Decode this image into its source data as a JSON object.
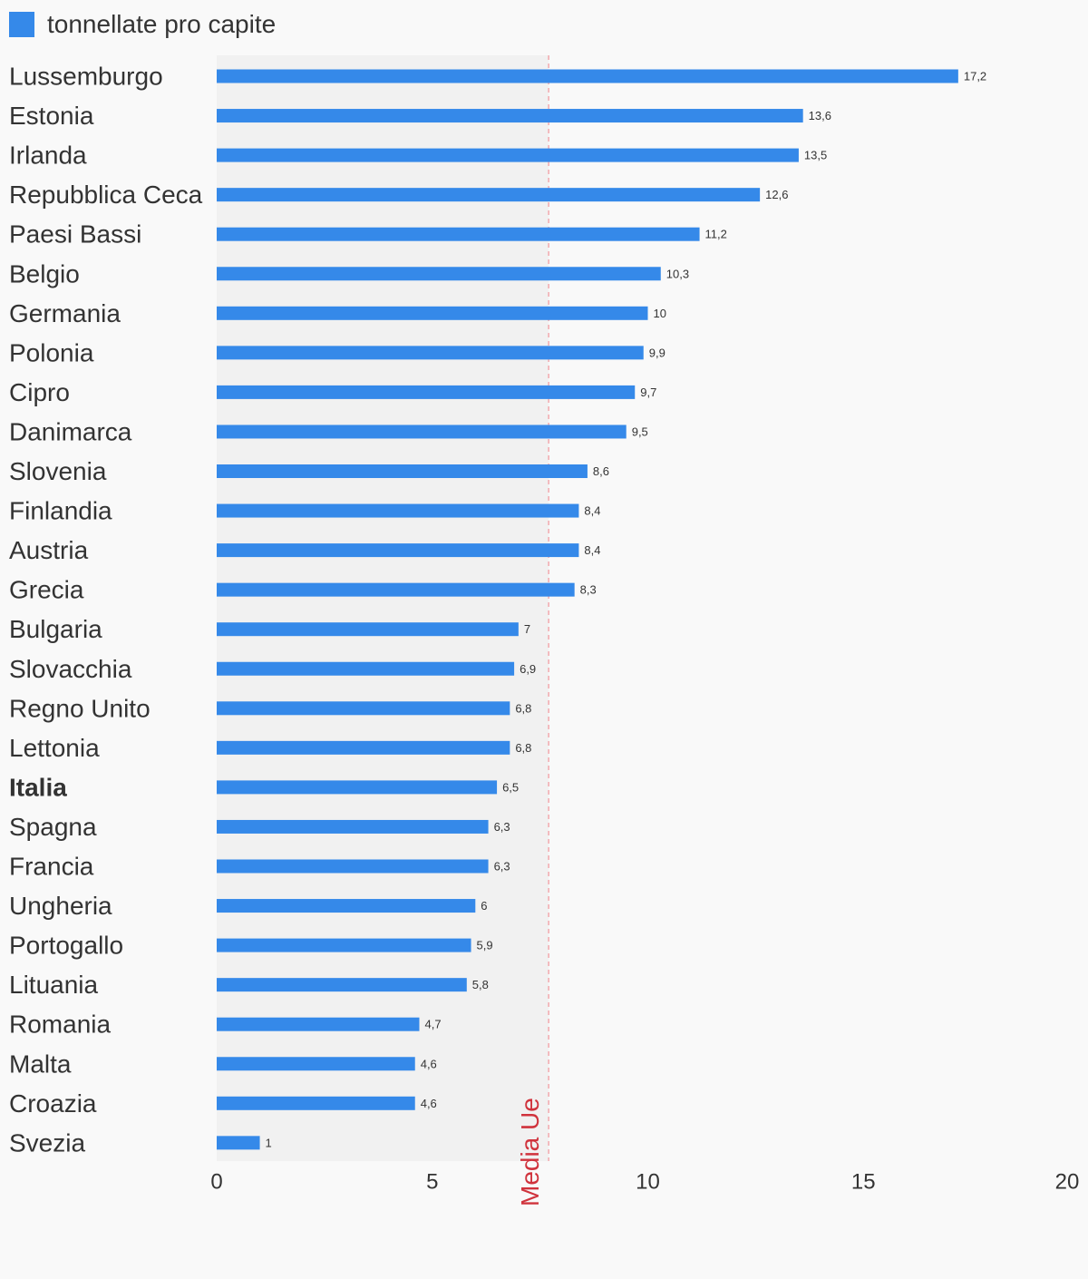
{
  "chart_data": {
    "type": "bar",
    "orientation": "horizontal",
    "legend": {
      "label": "tonnellate pro capite",
      "color": "#3589e9",
      "placement": "top-left"
    },
    "categories": [
      "Lussemburgo",
      "Estonia",
      "Irlanda",
      "Repubblica Ceca",
      "Paesi Bassi",
      "Belgio",
      "Germania",
      "Polonia",
      "Cipro",
      "Danimarca",
      "Slovenia",
      "Finlandia",
      "Austria",
      "Grecia",
      "Bulgaria",
      "Slovacchia",
      "Regno Unito",
      "Lettonia",
      "Italia",
      "Spagna",
      "Francia",
      "Ungheria",
      "Portogallo",
      "Lituania",
      "Romania",
      "Malta",
      "Croazia",
      "Svezia"
    ],
    "highlight_category": "Italia",
    "series": [
      {
        "name": "tonnellate pro capite",
        "values": [
          17.2,
          13.6,
          13.5,
          12.6,
          11.2,
          10.3,
          10,
          9.9,
          9.7,
          9.5,
          8.6,
          8.4,
          8.4,
          8.3,
          7,
          6.9,
          6.8,
          6.8,
          6.5,
          6.3,
          6.3,
          6,
          5.9,
          5.8,
          4.7,
          4.6,
          4.6,
          1
        ],
        "labels": [
          "17,2",
          "13,6",
          "13,5",
          "12,6",
          "11,2",
          "10,3",
          "10",
          "9,9",
          "9,7",
          "9,5",
          "8,6",
          "8,4",
          "8,4",
          "8,3",
          "7",
          "6,9",
          "6,8",
          "6,8",
          "6,5",
          "6,3",
          "6,3",
          "6",
          "5,9",
          "5,8",
          "4,7",
          "4,6",
          "4,6",
          "1"
        ]
      }
    ],
    "xlim": [
      0,
      20
    ],
    "xticks": [
      0,
      5,
      10,
      15,
      20
    ],
    "xtick_labels": [
      "0",
      "5",
      "10",
      "15",
      "20"
    ],
    "reference_line": {
      "label": "Media Ue",
      "value": 7.7,
      "color": "#d0333d",
      "shaded_band": [
        0,
        7.7
      ],
      "band_color": "#f1f1f1"
    },
    "grid": false,
    "colors": {
      "bar": "#3589e9",
      "background": "#f9f9f9",
      "text": "#333333"
    }
  }
}
